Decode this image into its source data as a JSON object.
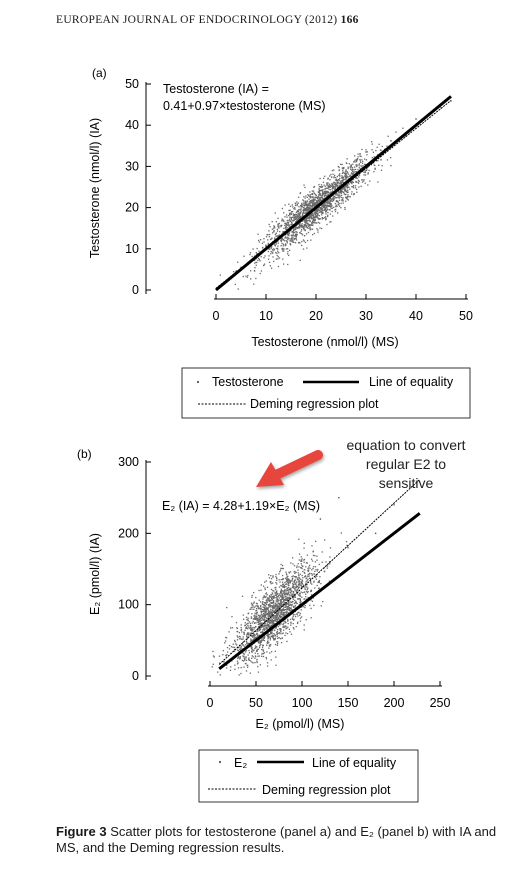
{
  "header": {
    "journal": "EUROPEAN JOURNAL OF ENDOCRINOLOGY (2012)",
    "volume": "166"
  },
  "chart_data": [
    {
      "type": "scatter",
      "panel_label": "(a)",
      "equation": "Testosterone (IA) =",
      "equation_line2": "0.41+0.97×testosterone (MS)",
      "xlabel": "Testosterone (nmol/l) (MS)",
      "ylabel": "Testosterone (nmol/l) (IA)",
      "xlim": [
        0,
        50
      ],
      "ylim": [
        0,
        50
      ],
      "xticks": [
        0,
        10,
        20,
        30,
        40,
        50
      ],
      "yticks": [
        0,
        10,
        20,
        30,
        40,
        50
      ],
      "series": [
        {
          "name": "Testosterone",
          "kind": "points",
          "center": [
            20,
            20
          ],
          "spread_x": 5.5,
          "spread_y_resid": 2.4,
          "n": 1800,
          "sample_points": [
            [
              2,
              2.1
            ],
            [
              5,
              5.5
            ],
            [
              8,
              7.6
            ],
            [
              10,
              10.6
            ],
            [
              12,
              11.5
            ],
            [
              15,
              15.3
            ],
            [
              18,
              17.2
            ],
            [
              20,
              20.5
            ],
            [
              22,
              23.4
            ],
            [
              25,
              24.1
            ],
            [
              28,
              28.7
            ],
            [
              30,
              33.5
            ],
            [
              33,
              31.6
            ],
            [
              35,
              36.2
            ],
            [
              38,
              37.3
            ],
            [
              40,
              41.5
            ],
            [
              45,
              44.2
            ],
            [
              47,
              45.9
            ]
          ]
        },
        {
          "name": "Line of equality",
          "kind": "line",
          "x": [
            0,
            47
          ],
          "y": [
            0,
            47
          ]
        },
        {
          "name": "Deming regression plot",
          "kind": "line",
          "intercept": 0.41,
          "slope": 0.97,
          "x": [
            0,
            47
          ]
        }
      ],
      "legend": [
        "Testosterone",
        "Line of equality",
        "Deming regression plot"
      ]
    },
    {
      "type": "scatter",
      "panel_label": "(b)",
      "equation": "E₂ (IA) = 4.28+1.19×E₂ (MS)",
      "xlabel": "E₂ (pmol/l) (MS)",
      "ylabel": "E₂ (pmol/l) (IA)",
      "xlim": [
        0,
        250
      ],
      "ylim": [
        0,
        300
      ],
      "xticks": [
        0,
        50,
        100,
        150,
        200,
        250
      ],
      "yticks": [
        0,
        100,
        200,
        300
      ],
      "series": [
        {
          "name": "E₂",
          "kind": "points",
          "center": [
            70,
            85
          ],
          "spread_x": 22,
          "spread_y_resid": 22,
          "n": 1800,
          "sample_points": [
            [
              15,
              20
            ],
            [
              30,
              40
            ],
            [
              45,
              60
            ],
            [
              55,
              70
            ],
            [
              60,
              85
            ],
            [
              70,
              90
            ],
            [
              80,
              100
            ],
            [
              90,
              110
            ],
            [
              100,
              125
            ],
            [
              110,
              120
            ],
            [
              130,
              160
            ],
            [
              150,
              180
            ],
            [
              180,
              200
            ],
            [
              200,
              240
            ],
            [
              120,
              220
            ],
            [
              140,
              250
            ]
          ]
        },
        {
          "name": "Line of equality",
          "kind": "line",
          "x": [
            10,
            228
          ],
          "y": [
            10,
            228
          ]
        },
        {
          "name": "Deming regression plot",
          "kind": "line",
          "intercept": 4.28,
          "slope": 1.19,
          "x": [
            10,
            228
          ]
        }
      ],
      "legend": [
        "E₂",
        "Line of equality",
        "Deming regression plot"
      ]
    }
  ],
  "annotation": {
    "text_line1": "equation to convert",
    "text_line2": "regular E2 to",
    "text_line3": "sensitive",
    "arrow_color": "#e8463c"
  },
  "caption": {
    "label": "Figure 3",
    "text": "Scatter plots for testosterone (panel a) and E₂ (panel b) with IA and MS, and the Deming regression results."
  }
}
